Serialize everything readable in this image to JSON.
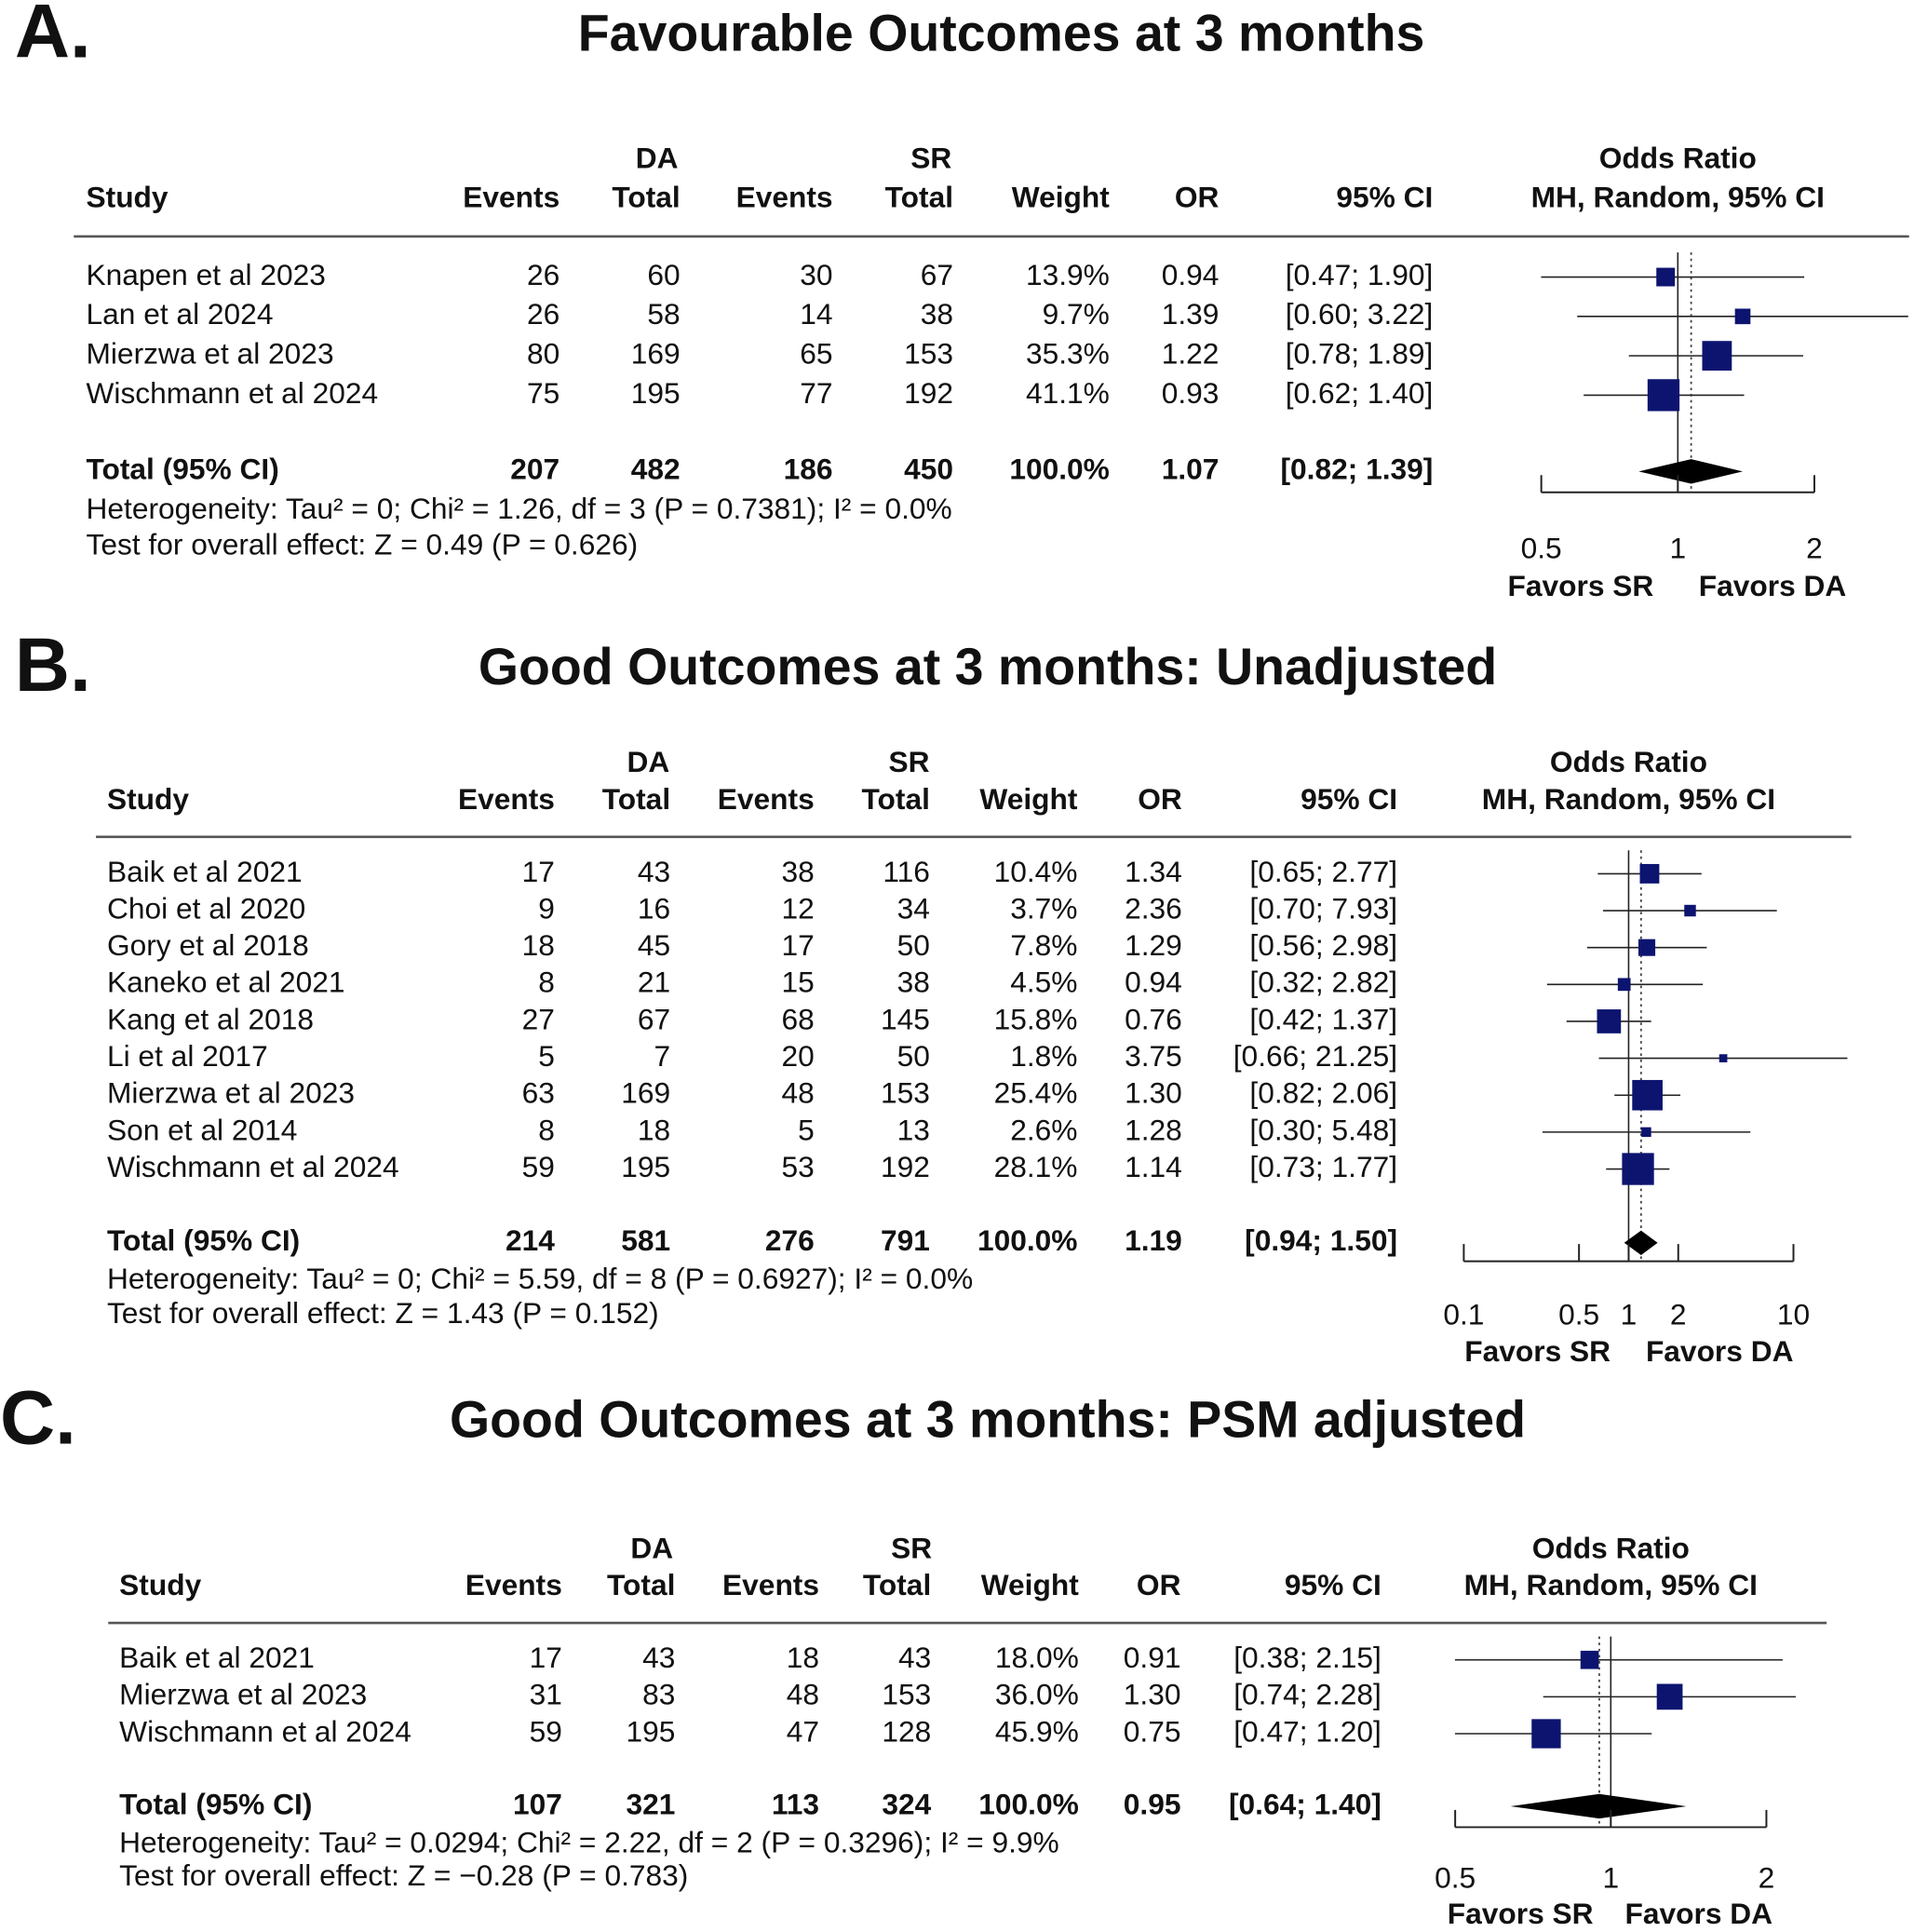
{
  "chart_data": [
    {
      "type": "forest",
      "panel_label": "A.",
      "title": "Favourable Outcomes at 3 months",
      "group_headers": {
        "da": "DA",
        "sr": "SR",
        "plot_line1": "Odds Ratio",
        "plot_line2": "MH, Random, 95% CI"
      },
      "columns": [
        "Study",
        "Events",
        "Total",
        "Events",
        "Total",
        "Weight",
        "OR",
        "95% CI"
      ],
      "rows": [
        {
          "study": "Knapen et al 2023",
          "da_events": "26",
          "da_total": "60",
          "sr_events": "30",
          "sr_total": "67",
          "weight": "13.9%",
          "or": "0.94",
          "ci": "[0.47; 1.90]",
          "w": 13.9,
          "or_value": 0.94,
          "lo": 0.47,
          "hi": 1.9
        },
        {
          "study": "Lan et al 2024",
          "da_events": "26",
          "da_total": "58",
          "sr_events": "14",
          "sr_total": "38",
          "weight": "9.7%",
          "or": "1.39",
          "ci": "[0.60; 3.22]",
          "w": 9.7,
          "or_value": 1.39,
          "lo": 0.6,
          "hi": 3.22
        },
        {
          "study": "Mierzwa et al 2023",
          "da_events": "80",
          "da_total": "169",
          "sr_events": "65",
          "sr_total": "153",
          "weight": "35.3%",
          "or": "1.22",
          "ci": "[0.78; 1.89]",
          "w": 35.3,
          "or_value": 1.22,
          "lo": 0.78,
          "hi": 1.89
        },
        {
          "study": "Wischmann et al 2024",
          "da_events": "75",
          "da_total": "195",
          "sr_events": "77",
          "sr_total": "192",
          "weight": "41.1%",
          "or": "0.93",
          "ci": "[0.62; 1.40]",
          "w": 41.1,
          "or_value": 0.93,
          "lo": 0.62,
          "hi": 1.4
        }
      ],
      "total": {
        "study": "Total (95% CI)",
        "da_events": "207",
        "da_total": "482",
        "sr_events": "186",
        "sr_total": "450",
        "weight": "100.0%",
        "or": "1.07",
        "ci": "[0.82; 1.39]",
        "or_value": 1.07,
        "lo": 0.82,
        "hi": 1.39
      },
      "heterogeneity": "Heterogeneity: Tau² = 0; Chi² = 1.26, df = 3 (P = 0.7381); I² = 0.0%",
      "overall_effect": "Test for overall effect: Z = 0.49 (P = 0.626)",
      "x_scale": "log",
      "xlim": [
        0.5,
        2
      ],
      "ticks": [
        {
          "value": 0.5,
          "label": "0.5"
        },
        {
          "value": 1,
          "label": "1"
        },
        {
          "value": 2,
          "label": "2"
        }
      ],
      "favors_left": "Favors SR",
      "favors_right": "Favors DA"
    },
    {
      "type": "forest",
      "panel_label": "B.",
      "title": "Good Outcomes at 3 months: Unadjusted",
      "group_headers": {
        "da": "DA",
        "sr": "SR",
        "plot_line1": "Odds Ratio",
        "plot_line2": "MH, Random, 95% CI"
      },
      "columns": [
        "Study",
        "Events",
        "Total",
        "Events",
        "Total",
        "Weight",
        "OR",
        "95% CI"
      ],
      "rows": [
        {
          "study": "Baik et al 2021",
          "da_events": "17",
          "da_total": "43",
          "sr_events": "38",
          "sr_total": "116",
          "weight": "10.4%",
          "or": "1.34",
          "ci": "[0.65;  2.77]",
          "w": 10.4,
          "or_value": 1.34,
          "lo": 0.65,
          "hi": 2.77
        },
        {
          "study": "Choi et al 2020",
          "da_events": "9",
          "da_total": "16",
          "sr_events": "12",
          "sr_total": "34",
          "weight": "3.7%",
          "or": "2.36",
          "ci": "[0.70;  7.93]",
          "w": 3.7,
          "or_value": 2.36,
          "lo": 0.7,
          "hi": 7.93
        },
        {
          "study": "Gory et al 2018",
          "da_events": "18",
          "da_total": "45",
          "sr_events": "17",
          "sr_total": "50",
          "weight": "7.8%",
          "or": "1.29",
          "ci": "[0.56;  2.98]",
          "w": 7.8,
          "or_value": 1.29,
          "lo": 0.56,
          "hi": 2.98
        },
        {
          "study": "Kaneko et al 2021",
          "da_events": "8",
          "da_total": "21",
          "sr_events": "15",
          "sr_total": "38",
          "weight": "4.5%",
          "or": "0.94",
          "ci": "[0.32;  2.82]",
          "w": 4.5,
          "or_value": 0.94,
          "lo": 0.32,
          "hi": 2.82
        },
        {
          "study": "Kang et al 2018",
          "da_events": "27",
          "da_total": "67",
          "sr_events": "68",
          "sr_total": "145",
          "weight": "15.8%",
          "or": "0.76",
          "ci": "[0.42;  1.37]",
          "w": 15.8,
          "or_value": 0.76,
          "lo": 0.42,
          "hi": 1.37
        },
        {
          "study": "Li et al 2017",
          "da_events": "5",
          "da_total": "7",
          "sr_events": "20",
          "sr_total": "50",
          "weight": "1.8%",
          "or": "3.75",
          "ci": "[0.66; 21.25]",
          "w": 1.8,
          "or_value": 3.75,
          "lo": 0.66,
          "hi": 21.25
        },
        {
          "study": "Mierzwa et al 2023",
          "da_events": "63",
          "da_total": "169",
          "sr_events": "48",
          "sr_total": "153",
          "weight": "25.4%",
          "or": "1.30",
          "ci": "[0.82;  2.06]",
          "w": 25.4,
          "or_value": 1.3,
          "lo": 0.82,
          "hi": 2.06
        },
        {
          "study": "Son et al 2014",
          "da_events": "8",
          "da_total": "18",
          "sr_events": "5",
          "sr_total": "13",
          "weight": "2.6%",
          "or": "1.28",
          "ci": "[0.30;  5.48]",
          "w": 2.6,
          "or_value": 1.28,
          "lo": 0.3,
          "hi": 5.48
        },
        {
          "study": "Wischmann et al 2024",
          "da_events": "59",
          "da_total": "195",
          "sr_events": "53",
          "sr_total": "192",
          "weight": "28.1%",
          "or": "1.14",
          "ci": "[0.73;  1.77]",
          "w": 28.1,
          "or_value": 1.14,
          "lo": 0.73,
          "hi": 1.77
        }
      ],
      "total": {
        "study": "Total (95% CI)",
        "da_events": "214",
        "da_total": "581",
        "sr_events": "276",
        "sr_total": "791",
        "weight": "100.0%",
        "or": "1.19",
        "ci": "[0.94;  1.50]",
        "or_value": 1.19,
        "lo": 0.94,
        "hi": 1.5
      },
      "heterogeneity": "Heterogeneity: Tau² = 0; Chi² = 5.59, df = 8 (P = 0.6927); I² = 0.0%",
      "overall_effect": "Test for overall effect: Z = 1.43 (P = 0.152)",
      "x_scale": "log",
      "xlim": [
        0.1,
        10
      ],
      "ticks": [
        {
          "value": 0.1,
          "label": "0.1"
        },
        {
          "value": 0.5,
          "label": "0.5"
        },
        {
          "value": 1,
          "label": "1"
        },
        {
          "value": 2,
          "label": "2"
        },
        {
          "value": 10,
          "label": "10"
        }
      ],
      "favors_left": "Favors SR",
      "favors_right": "Favors DA"
    },
    {
      "type": "forest",
      "panel_label": "C.",
      "title": "Good Outcomes at 3 months: PSM adjusted",
      "group_headers": {
        "da": "DA",
        "sr": "SR",
        "plot_line1": "Odds Ratio",
        "plot_line2": "MH, Random, 95% CI"
      },
      "columns": [
        "Study",
        "Events",
        "Total",
        "Events",
        "Total",
        "Weight",
        "OR",
        "95% CI"
      ],
      "rows": [
        {
          "study": "Baik et al 2021",
          "da_events": "17",
          "da_total": "43",
          "sr_events": "18",
          "sr_total": "43",
          "weight": "18.0%",
          "or": "0.91",
          "ci": "[0.38; 2.15]",
          "w": 18.0,
          "or_value": 0.91,
          "lo": 0.38,
          "hi": 2.15
        },
        {
          "study": "Mierzwa et al 2023",
          "da_events": "31",
          "da_total": "83",
          "sr_events": "48",
          "sr_total": "153",
          "weight": "36.0%",
          "or": "1.30",
          "ci": "[0.74; 2.28]",
          "w": 36.0,
          "or_value": 1.3,
          "lo": 0.74,
          "hi": 2.28
        },
        {
          "study": "Wischmann et al 2024",
          "da_events": "59",
          "da_total": "195",
          "sr_events": "47",
          "sr_total": "128",
          "weight": "45.9%",
          "or": "0.75",
          "ci": "[0.47; 1.20]",
          "w": 45.9,
          "or_value": 0.75,
          "lo": 0.47,
          "hi": 1.2
        }
      ],
      "total": {
        "study": "Total (95% CI)",
        "da_events": "107",
        "da_total": "321",
        "sr_events": "113",
        "sr_total": "324",
        "weight": "100.0%",
        "or": "0.95",
        "ci": "[0.64; 1.40]",
        "or_value": 0.95,
        "lo": 0.64,
        "hi": 1.4
      },
      "heterogeneity": "Heterogeneity: Tau² = 0.0294; Chi² = 2.22, df = 2 (P = 0.3296); I² = 9.9%",
      "overall_effect": "Test for overall effect: Z = −0.28 (P = 0.783)",
      "x_scale": "log",
      "xlim": [
        0.5,
        2
      ],
      "ticks": [
        {
          "value": 0.5,
          "label": "0.5"
        },
        {
          "value": 1,
          "label": "1"
        },
        {
          "value": 2,
          "label": "2"
        }
      ],
      "favors_left": "Favors SR",
      "favors_right": "Favors DA"
    }
  ],
  "colors": {
    "box": "#0c1470",
    "diamond": "#000000",
    "text": "#111111",
    "rule": "#555555"
  }
}
